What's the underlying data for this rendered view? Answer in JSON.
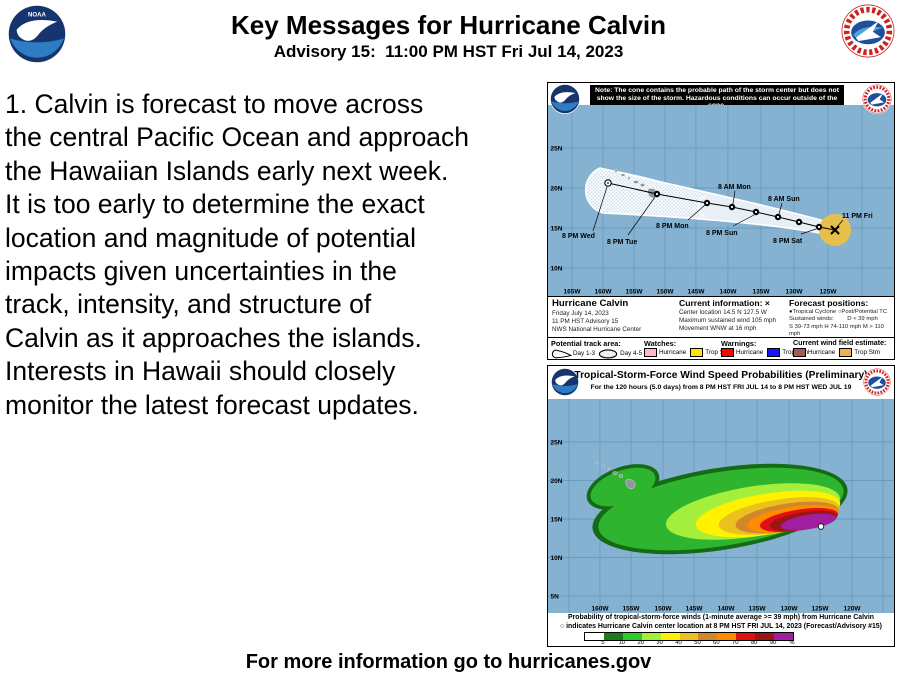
{
  "header": {
    "title": "Key Messages for Hurricane Calvin",
    "subtitle": "Advisory 15:  11:00 PM HST Fri Jul 14, 2023",
    "noaa_label": "NOAA"
  },
  "message_lines": [
    "1. Calvin is forecast to move across",
    "the central Pacific Ocean and approach",
    "the Hawaiian Islands early next week.",
    "It is too early to determine the exact",
    "location and magnitude of potential",
    "impacts given uncertainties in the",
    "track, intensity, and structure of",
    "Calvin as it approaches the islands.",
    "Interests in Hawaii should closely",
    "monitor the latest forecast updates."
  ],
  "cone_map": {
    "note": "Note: The cone contains the probable path of the storm center but does not show the size of the storm. Hazardous conditions can occur outside of the cone.",
    "lat_labels": [
      "25N",
      "20N",
      "15N",
      "10N"
    ],
    "lon_labels": [
      "165W",
      "160W",
      "155W",
      "150W",
      "145W",
      "140W",
      "135W",
      "130W",
      "125W"
    ],
    "track_labels": [
      "8 PM Wed",
      "8 PM Tue",
      "8 PM Mon",
      "8 AM Mon",
      "8 PM Sun",
      "8 AM Sun",
      "8 PM Sat",
      "11 PM Fri"
    ],
    "info": {
      "storm_name": "Hurricane Calvin",
      "date": "Friday July 14, 2023",
      "advisory": "11 PM HST Advisory 15",
      "agency": "NWS National Hurricane Center",
      "current_title": "Current information: ×",
      "center_location": "Center location 14.5 N 127.5 W",
      "max_wind": "Maximum sustained wind 105 mph",
      "movement": "Movement WNW at 16 mph",
      "forecast_title": "Forecast positions:",
      "tc_symbols": "●Tropical Cyclone   ○Post/Potential TC",
      "sustained_label": "Sustained winds:",
      "d_label": "D < 39 mph",
      "shm_label": "S 39-73 mph  H 74-110 mph  M > 110 mph"
    },
    "legend": {
      "track_area_title": "Potential track area:",
      "day13": "Day 1-3",
      "day45": "Day 4-5",
      "watches_title": "Watches:",
      "warnings_title": "Warnings:",
      "wind_field_title": "Current wind field estimate:",
      "hurricane_label": "Hurricane",
      "trop_stm_label": "Trop Stm",
      "watch_hurricane_color": "#ffb8c4",
      "watch_ts_color": "#ffe600",
      "warning_hurricane_color": "#ff0000",
      "warning_ts_color": "#1414ff",
      "wind_hurricane_color": "#a25a52",
      "wind_ts_color": "#efb052"
    }
  },
  "prob_map": {
    "title": "Tropical-Storm-Force Wind Speed Probabilities (Preliminary)",
    "subtitle": "For the 120 hours (5.0 days) from 8 PM HST FRI JUL 14 to 8 PM HST WED JUL 19",
    "lat_labels": [
      "25N",
      "20N",
      "15N",
      "10N",
      "5N"
    ],
    "lon_labels": [
      "160W",
      "155W",
      "150W",
      "145W",
      "140W",
      "135W",
      "130W",
      "125W",
      "120W"
    ],
    "caption_line1": "Probability of tropical-storm-force winds (1-minute average >= 39 mph) from Hurricane Calvin",
    "caption_line2": "○ indicates Hurricane Calvin center location at 8 PM HST FRI JUL 14, 2023 (Forecast/Advisory #15)",
    "scale_labels": [
      "5",
      "10",
      "20",
      "30",
      "40",
      "50",
      "60",
      "70",
      "80",
      "90",
      "%"
    ],
    "scale_colors": [
      "#ffffff",
      "#1c7c1c",
      "#2fc82f",
      "#a4ef3c",
      "#fff200",
      "#edc021",
      "#d0882a",
      "#ff8c00",
      "#e01010",
      "#9c1414",
      "#a01ea0"
    ]
  },
  "footer": "For more information go to hurricanes.gov"
}
